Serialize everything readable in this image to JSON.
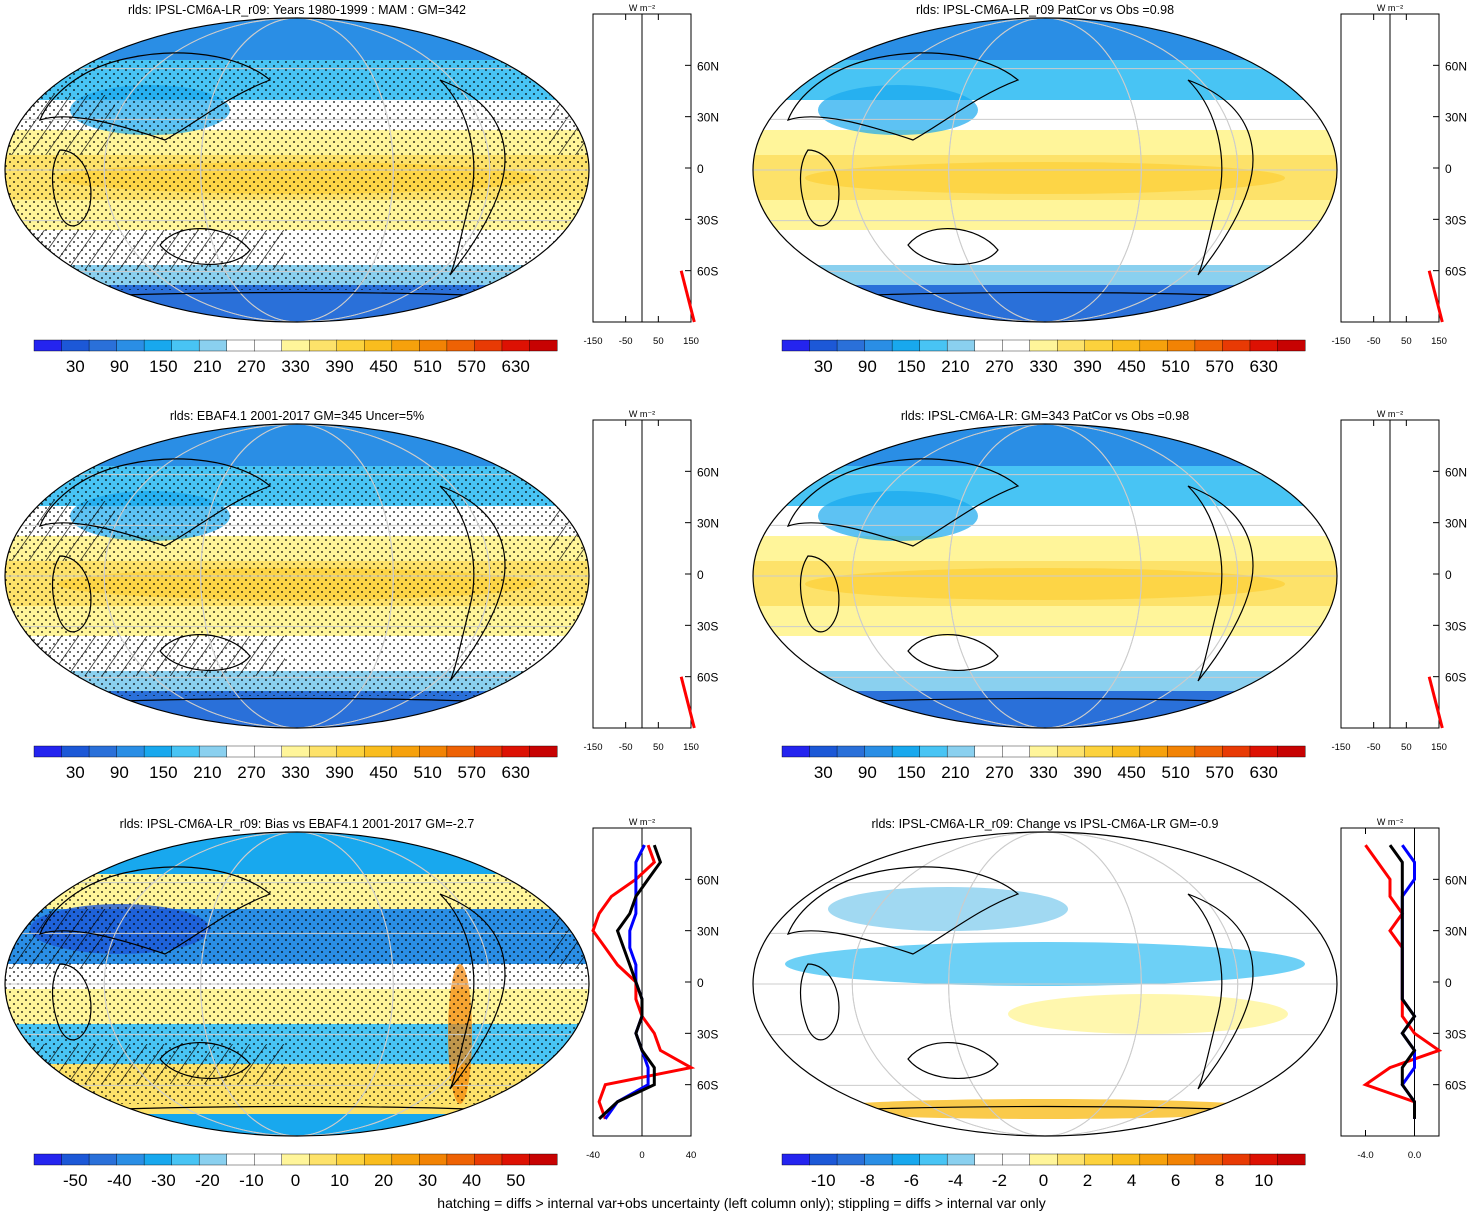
{
  "colors": {
    "scale13": [
      "#2424ef",
      "#1c58d7",
      "#2a70d9",
      "#2a8ee5",
      "#18a8ee",
      "#48c4f4",
      "#8ad0ef",
      "#ffffff",
      "#ffffff",
      "#fff59a",
      "#fde26a",
      "#fcd23d",
      "#f9bd1e",
      "#f6a10c",
      "#f28304",
      "#ee6204",
      "#e83a04",
      "#dd1103",
      "#c70202"
    ],
    "hatch": "#000000",
    "stipple": "#000000",
    "grid": "#cccccc",
    "coast": "#000000",
    "profile_red": "#ff0000",
    "profile_blue": "#0000ff",
    "profile_black": "#000000"
  },
  "panels": [
    {
      "id": "p1",
      "title": "rlds: IPSL-CM6A-LR_r09: Years 1980-1999 : MAM : GM=342",
      "kind": "climatology",
      "hatching": true,
      "stippling": true,
      "colorbar_labels": [
        "30",
        "90",
        "150",
        "210",
        "270",
        "330",
        "390",
        "450",
        "510",
        "570",
        "630"
      ],
      "profile_unit": "W m⁻²",
      "profile_xticks": [
        "-150",
        "-50",
        "50",
        "150"
      ],
      "profile_lat_labels": [
        "60N",
        "30N",
        "0",
        "30S",
        "60S"
      ]
    },
    {
      "id": "p2",
      "title": "rlds: IPSL-CM6A-LR_r09 PatCor vs Obs =0.98",
      "kind": "climatology",
      "hatching": false,
      "stippling": false,
      "colorbar_labels": [
        "30",
        "90",
        "150",
        "210",
        "270",
        "330",
        "390",
        "450",
        "510",
        "570",
        "630"
      ],
      "profile_unit": "W m⁻²",
      "profile_xticks": [
        "-150",
        "-50",
        "50",
        "150"
      ],
      "profile_lat_labels": [
        "60N",
        "30N",
        "0",
        "30S",
        "60S"
      ]
    },
    {
      "id": "p3",
      "title": "rlds: EBAF4.1 2001-2017 GM=345 Uncer=5%",
      "kind": "climatology",
      "hatching": true,
      "stippling": true,
      "colorbar_labels": [
        "30",
        "90",
        "150",
        "210",
        "270",
        "330",
        "390",
        "450",
        "510",
        "570",
        "630"
      ],
      "profile_unit": "W m⁻²",
      "profile_xticks": [
        "-150",
        "-50",
        "50",
        "150"
      ],
      "profile_lat_labels": [
        "60N",
        "30N",
        "0",
        "30S",
        "60S"
      ]
    },
    {
      "id": "p4",
      "title": "rlds: IPSL-CM6A-LR: GM=343 PatCor vs Obs =0.98",
      "kind": "climatology",
      "hatching": false,
      "stippling": false,
      "colorbar_labels": [
        "30",
        "90",
        "150",
        "210",
        "270",
        "330",
        "390",
        "450",
        "510",
        "570",
        "630"
      ],
      "profile_unit": "W m⁻²",
      "profile_xticks": [
        "-150",
        "-50",
        "50",
        "150"
      ],
      "profile_lat_labels": [
        "60N",
        "30N",
        "0",
        "30S",
        "60S"
      ]
    },
    {
      "id": "p5",
      "title": "rlds: IPSL-CM6A-LR_r09: Bias vs EBAF4.1 2001-2017 GM=-2.7",
      "kind": "bias",
      "hatching": true,
      "stippling": true,
      "colorbar_labels": [
        "-50",
        "-40",
        "-30",
        "-20",
        "-10",
        "0",
        "10",
        "20",
        "30",
        "40",
        "50"
      ],
      "profile_unit": "W m⁻²",
      "profile_xticks": [
        "-40",
        "0",
        "40"
      ],
      "profile_lat_labels": [
        "60N",
        "30N",
        "0",
        "30S",
        "60S"
      ]
    },
    {
      "id": "p6",
      "title": "rlds: IPSL-CM6A-LR_r09: Change vs IPSL-CM6A-LR GM=-0.9",
      "kind": "change",
      "hatching": false,
      "stippling": false,
      "colorbar_labels": [
        "-10",
        "-8",
        "-6",
        "-4",
        "-2",
        "0",
        "2",
        "4",
        "6",
        "8",
        "10"
      ],
      "profile_unit": "W m⁻²",
      "profile_xticks": [
        "-4.0",
        "0.0"
      ],
      "profile_lat_labels": [
        "60N",
        "30N",
        "0",
        "30S",
        "60S"
      ]
    }
  ],
  "footnote": "hatching = diffs > internal var+obs uncertainty (left column only); stippling = diffs > internal var only",
  "chart_data": [
    {
      "type": "heatmap",
      "title": "rlds: IPSL-CM6A-LR_r09: Years 1980-1999 : MAM : GM=342",
      "units": "W m-2",
      "zonal_mean_profile": {
        "lat": [
          90,
          60,
          30,
          0,
          -30,
          -60,
          -90
        ],
        "series": [
          {
            "values": [
              null,
              null,
              null,
              null,
              null,
              120,
              160
            ]
          }
        ],
        "xlim": [
          -150,
          150
        ]
      }
    },
    {
      "type": "heatmap",
      "title": "rlds: IPSL-CM6A-LR_r09 PatCor vs Obs =0.98",
      "units": "W m-2",
      "zonal_mean_profile": {
        "lat": [
          90,
          60,
          30,
          0,
          -30,
          -60,
          -90
        ],
        "series": [
          {
            "values": [
              null,
              null,
              null,
              null,
              null,
              120,
              160
            ]
          }
        ],
        "xlim": [
          -150,
          150
        ]
      }
    },
    {
      "type": "heatmap",
      "title": "rlds: EBAF4.1 2001-2017 GM=345 Uncer=5%",
      "units": "W m-2",
      "zonal_mean_profile": {
        "lat": [
          90,
          60,
          30,
          0,
          -30,
          -60,
          -90
        ],
        "series": [
          {
            "values": [
              null,
              null,
              null,
              null,
              null,
              120,
              160
            ]
          }
        ],
        "xlim": [
          -150,
          150
        ]
      }
    },
    {
      "type": "heatmap",
      "title": "rlds: IPSL-CM6A-LR: GM=343 PatCor vs Obs =0.98",
      "units": "W m-2",
      "zonal_mean_profile": {
        "lat": [
          90,
          60,
          30,
          0,
          -30,
          -60,
          -90
        ],
        "series": [
          {
            "values": [
              null,
              null,
              null,
              null,
              null,
              120,
              160
            ]
          }
        ],
        "xlim": [
          -150,
          150
        ]
      }
    },
    {
      "type": "heatmap",
      "title": "rlds: IPSL-CM6A-LR_r09: Bias vs EBAF4.1 2001-2017 GM=-2.7",
      "units": "W m-2",
      "zonal_mean_profile": {
        "lat": [
          80,
          70,
          60,
          50,
          40,
          30,
          20,
          10,
          0,
          -10,
          -20,
          -30,
          -40,
          -50,
          -60,
          -70,
          -80
        ],
        "series": [
          {
            "color": "red",
            "values": [
              5,
              10,
              -5,
              -25,
              -35,
              -40,
              -30,
              -20,
              -5,
              -5,
              0,
              10,
              15,
              40,
              -30,
              -35,
              -30
            ]
          },
          {
            "color": "blue",
            "values": [
              2,
              -5,
              -5,
              -5,
              -5,
              -10,
              -10,
              -5,
              -5,
              0,
              0,
              -5,
              0,
              5,
              5,
              -20,
              -30
            ]
          },
          {
            "color": "black",
            "values": [
              10,
              15,
              5,
              -5,
              -10,
              -20,
              -15,
              -10,
              -5,
              0,
              0,
              -5,
              0,
              10,
              10,
              -20,
              -35
            ]
          }
        ],
        "xlim": [
          -40,
          40
        ]
      }
    },
    {
      "type": "heatmap",
      "title": "rlds: IPSL-CM6A-LR_r09: Change vs IPSL-CM6A-LR GM=-0.9",
      "units": "W m-2",
      "zonal_mean_profile": {
        "lat": [
          80,
          70,
          60,
          50,
          40,
          30,
          20,
          10,
          0,
          -10,
          -20,
          -30,
          -40,
          -50,
          -60,
          -70,
          -80
        ],
        "series": [
          {
            "color": "red",
            "values": [
              -4,
              -3,
              -2,
              -2,
              -1,
              -2,
              -1,
              -1,
              -1,
              -1,
              -1,
              0,
              2,
              -2,
              -4,
              0,
              0
            ]
          },
          {
            "color": "blue",
            "values": [
              -1,
              0,
              0,
              -1,
              -1,
              -1,
              -1,
              -1,
              -1,
              -1,
              0,
              -1,
              0,
              0,
              -1,
              0,
              0
            ]
          },
          {
            "color": "black",
            "values": [
              -2,
              -1,
              -1,
              -1,
              -1,
              -1,
              -1,
              -1,
              -1,
              -1,
              0,
              -1,
              0,
              -1,
              -1,
              0,
              0
            ]
          }
        ],
        "xlim": [
          -6,
          2
        ]
      }
    }
  ]
}
